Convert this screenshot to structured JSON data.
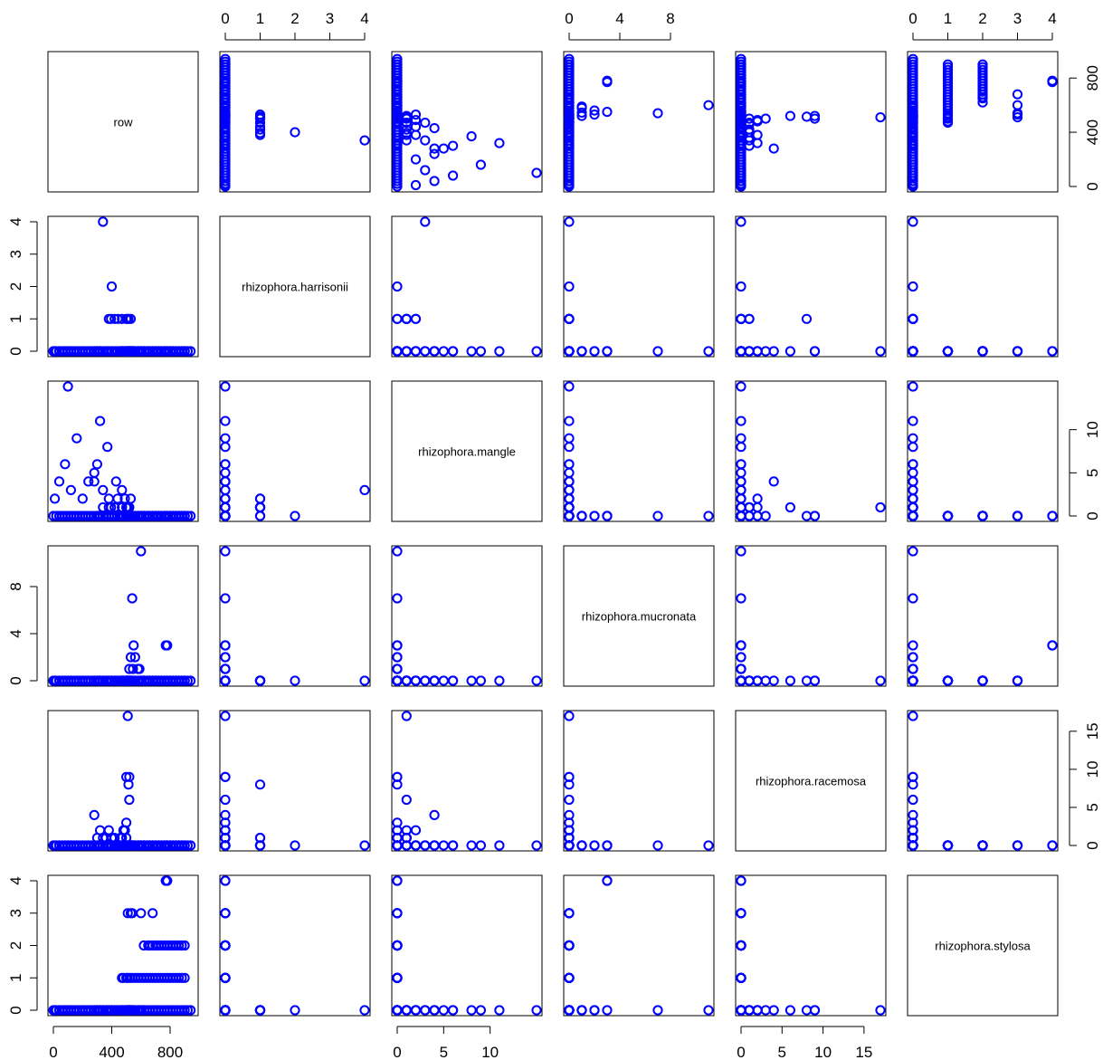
{
  "chart_data": {
    "type": "scatter",
    "layout": "pairs-matrix",
    "point_color": "#0000FF",
    "variables": [
      "row",
      "rhizophora.harrisonii",
      "rhizophora.mangle",
      "rhizophora.mucronata",
      "rhizophora.racemosa",
      "rhizophora.stylosa"
    ],
    "axis_ranges": [
      [
        0,
        955
      ],
      [
        0,
        4
      ],
      [
        0,
        15
      ],
      [
        0,
        11
      ],
      [
        0,
        17
      ],
      [
        0,
        4
      ]
    ],
    "ticks": [
      [
        0,
        400,
        800
      ],
      [
        0,
        1,
        2,
        3,
        4
      ],
      [
        0,
        5,
        10
      ],
      [
        0,
        4,
        8
      ],
      [
        0,
        5,
        10,
        15
      ],
      [
        0,
        1,
        2,
        3,
        4
      ]
    ],
    "observations_by_variable": {
      "row": [
        0,
        20,
        40,
        60,
        80,
        100,
        120,
        140,
        160,
        180,
        200,
        220,
        240,
        260,
        280,
        300,
        320,
        340,
        360,
        380,
        400,
        420,
        440,
        460,
        480,
        500,
        520,
        540,
        560,
        580,
        600,
        620,
        640,
        660,
        680,
        700,
        720,
        740,
        760,
        780,
        800,
        820,
        840,
        860,
        880,
        900,
        920,
        940,
        10,
        40,
        80,
        120,
        160,
        200,
        240,
        280,
        320,
        370,
        430,
        470,
        510,
        530,
        550,
        380,
        395,
        400,
        420,
        440,
        470,
        500,
        510,
        515,
        530,
        470,
        480,
        500,
        510,
        525,
        540,
        560,
        580,
        600,
        620,
        640,
        660,
        680,
        700,
        720,
        740,
        760,
        780,
        800,
        820,
        840,
        860,
        880,
        900,
        620,
        650,
        680,
        700,
        720,
        740,
        760,
        780,
        800,
        820,
        840,
        860,
        880,
        900,
        520,
        530,
        545,
        550,
        600,
        560,
        580,
        590,
        770,
        780,
        510,
        530,
        540,
        600,
        660,
        680,
        520,
        510,
        500,
        490,
        480,
        470,
        460,
        400,
        380,
        360,
        340,
        320,
        310,
        300,
        340,
        280,
        100,
        300,
        500,
        520,
        540,
        620
      ],
      "rhizophora.harrisonii": [
        0,
        0,
        0,
        0,
        0,
        0,
        0,
        0,
        0,
        0,
        0,
        0,
        0,
        0,
        0,
        0,
        0,
        0,
        0,
        0,
        0,
        0,
        0,
        0,
        0,
        0,
        0,
        0,
        0,
        0,
        0,
        0,
        0,
        0,
        0,
        0,
        0,
        0,
        0,
        0,
        0,
        0,
        0,
        0,
        0,
        0,
        0,
        0,
        0,
        0,
        0,
        0,
        0,
        0,
        0,
        0,
        0,
        0,
        0,
        0,
        0,
        0,
        0,
        1,
        1,
        2,
        1,
        1,
        1,
        1,
        1,
        1,
        1,
        0,
        0,
        0,
        0,
        0,
        0,
        0,
        0,
        0,
        0,
        0,
        0,
        0,
        0,
        0,
        0,
        0,
        0,
        0,
        0,
        0,
        0,
        0,
        0,
        0,
        0,
        0,
        0,
        0,
        0,
        0,
        0,
        0,
        0,
        0,
        0,
        0,
        0,
        0,
        0,
        0,
        0,
        0,
        0,
        0,
        0,
        0,
        0,
        0,
        0,
        0,
        0,
        0,
        0,
        0,
        0,
        0,
        0,
        0,
        0,
        0,
        0,
        0,
        0,
        0,
        0,
        0,
        0,
        4,
        0,
        0,
        0,
        0,
        0,
        0,
        0
      ],
      "rhizophora.mangle": [
        0,
        0,
        0,
        0,
        0,
        0,
        0,
        0,
        0,
        0,
        0,
        0,
        0,
        0,
        0,
        0,
        0,
        0,
        0,
        0,
        0,
        0,
        0,
        0,
        0,
        0,
        0,
        0,
        0,
        0,
        0,
        0,
        0,
        0,
        0,
        0,
        0,
        0,
        0,
        0,
        0,
        0,
        0,
        0,
        0,
        0,
        0,
        0,
        2,
        4,
        6,
        3,
        9,
        2,
        4,
        5,
        11,
        8,
        4,
        3,
        1,
        2,
        0,
        2,
        1,
        0,
        1,
        2,
        1,
        1,
        1,
        0,
        0,
        0,
        0,
        0,
        0,
        0,
        0,
        0,
        0,
        0,
        0,
        0,
        0,
        0,
        0,
        0,
        0,
        0,
        0,
        0,
        0,
        0,
        0,
        0,
        0,
        0,
        0,
        0,
        0,
        0,
        0,
        0,
        0,
        0,
        0,
        0,
        0,
        0,
        0,
        0,
        0,
        0,
        0,
        0,
        0,
        0,
        0,
        0,
        0,
        0,
        0,
        0,
        0,
        0,
        0,
        0,
        1,
        0,
        2,
        0,
        1,
        0,
        0,
        1,
        0,
        1,
        0,
        0,
        0,
        3,
        4,
        15,
        6,
        0,
        1,
        0,
        0
      ],
      "rhizophora.mucronata": [
        0,
        0,
        0,
        0,
        0,
        0,
        0,
        0,
        0,
        0,
        0,
        0,
        0,
        0,
        0,
        0,
        0,
        0,
        0,
        0,
        0,
        0,
        0,
        0,
        0,
        0,
        0,
        0,
        0,
        0,
        0,
        0,
        0,
        0,
        0,
        0,
        0,
        0,
        0,
        0,
        0,
        0,
        0,
        0,
        0,
        0,
        0,
        0,
        0,
        0,
        0,
        0,
        0,
        0,
        0,
        0,
        0,
        0,
        0,
        0,
        0,
        0,
        0,
        0,
        0,
        0,
        0,
        0,
        0,
        0,
        0,
        0,
        0,
        0,
        0,
        0,
        0,
        0,
        0,
        0,
        0,
        0,
        0,
        0,
        0,
        0,
        0,
        0,
        0,
        0,
        0,
        0,
        0,
        0,
        0,
        0,
        0,
        0,
        0,
        0,
        0,
        0,
        0,
        0,
        0,
        0,
        0,
        0,
        0,
        0,
        0,
        1,
        2,
        1,
        3,
        11,
        2,
        1,
        1,
        3,
        3,
        0,
        0,
        0,
        0,
        0,
        0,
        0,
        0,
        0,
        0,
        0,
        0,
        0,
        0,
        0,
        0,
        0,
        0,
        0,
        0,
        0,
        0,
        0,
        0,
        0,
        0,
        7,
        0
      ],
      "rhizophora.racemosa": [
        0,
        0,
        0,
        0,
        0,
        0,
        0,
        0,
        0,
        0,
        0,
        0,
        0,
        0,
        0,
        0,
        0,
        0,
        0,
        0,
        0,
        0,
        0,
        0,
        0,
        0,
        0,
        0,
        0,
        0,
        0,
        0,
        0,
        0,
        0,
        0,
        0,
        0,
        0,
        0,
        0,
        0,
        0,
        0,
        0,
        0,
        0,
        0,
        0,
        0,
        0,
        0,
        0,
        0,
        0,
        0,
        0,
        0,
        0,
        0,
        0,
        0,
        0,
        0,
        0,
        0,
        1,
        0,
        0,
        1,
        0,
        8,
        0,
        0,
        0,
        0,
        0,
        0,
        0,
        0,
        0,
        0,
        0,
        0,
        0,
        0,
        0,
        0,
        0,
        0,
        0,
        0,
        0,
        0,
        0,
        0,
        0,
        0,
        0,
        0,
        0,
        0,
        0,
        0,
        0,
        0,
        0,
        0,
        0,
        0,
        0,
        0,
        0,
        0,
        0,
        0,
        0,
        0,
        0,
        0,
        0,
        0,
        0,
        0,
        0,
        0,
        0,
        9,
        17,
        3,
        2,
        2,
        1,
        1,
        1,
        2,
        1,
        1,
        2,
        0,
        1,
        0,
        4,
        0,
        0,
        9,
        6,
        0,
        0
      ],
      "rhizophora.stylosa": [
        0,
        0,
        0,
        0,
        0,
        0,
        0,
        0,
        0,
        0,
        0,
        0,
        0,
        0,
        0,
        0,
        0,
        0,
        0,
        0,
        0,
        0,
        0,
        0,
        0,
        0,
        0,
        0,
        0,
        0,
        0,
        0,
        0,
        0,
        0,
        0,
        0,
        0,
        0,
        0,
        0,
        0,
        0,
        0,
        0,
        0,
        0,
        0,
        0,
        0,
        0,
        0,
        0,
        0,
        0,
        0,
        0,
        0,
        0,
        0,
        0,
        0,
        0,
        0,
        0,
        0,
        0,
        0,
        0,
        0,
        0,
        0,
        0,
        1,
        1,
        1,
        1,
        1,
        1,
        1,
        1,
        1,
        1,
        1,
        1,
        1,
        1,
        1,
        1,
        1,
        1,
        1,
        1,
        1,
        1,
        1,
        1,
        2,
        2,
        2,
        2,
        2,
        2,
        2,
        2,
        2,
        2,
        2,
        2,
        2,
        2,
        0,
        0,
        0,
        0,
        0,
        0,
        0,
        0,
        4,
        4,
        3,
        3,
        3,
        3,
        2,
        3,
        0,
        0,
        0,
        0,
        0,
        0,
        0,
        0,
        0,
        0,
        0,
        0,
        0,
        0,
        0,
        0,
        0,
        0,
        0,
        0,
        0,
        0
      ]
    }
  }
}
